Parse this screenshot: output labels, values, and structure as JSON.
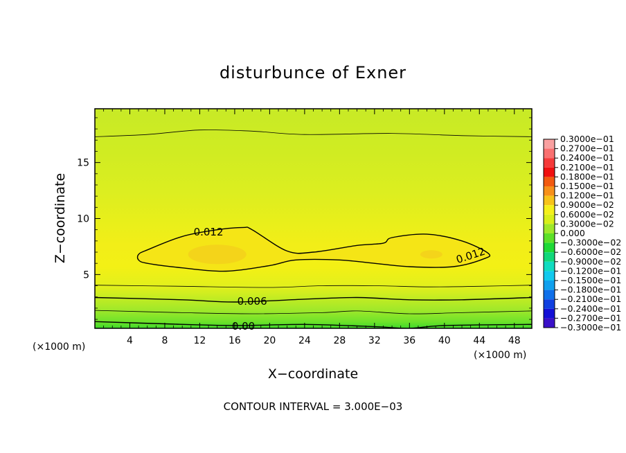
{
  "chart_data": {
    "type": "heatmap",
    "title": "disturbunce of Exner",
    "xlabel": "X−coordinate",
    "ylabel": "Z−coordinate",
    "x_unit_left": "(×1000 m)",
    "x_unit_right": "(×1000 m)",
    "xlim": [
      0,
      50
    ],
    "ylim": [
      0.2,
      19.8
    ],
    "xticks": [
      4,
      8,
      12,
      16,
      20,
      24,
      28,
      32,
      36,
      40,
      44,
      48
    ],
    "xtick_labels": [
      "4",
      "8",
      "12",
      "16",
      "20",
      "24",
      "28",
      "32",
      "36",
      "40",
      "44",
      "48"
    ],
    "yticks": [
      5,
      10,
      15
    ],
    "ytick_labels": [
      "5",
      "10",
      "15"
    ],
    "contour_interval_text": "CONTOUR INTERVAL = 3.000E−03",
    "contour_labels": [
      {
        "text": "0.012",
        "x": 13,
        "y": 8.8
      },
      {
        "text": "0.012",
        "x": 43,
        "y": 6.7
      },
      {
        "text": "0.006",
        "x": 18,
        "y": 2.6
      },
      {
        "text": "0.00",
        "x": 17,
        "y": 0.4
      }
    ],
    "contours": [
      {
        "level": 0.0,
        "points": [
          [
            0,
            0.8
          ],
          [
            8,
            0.6
          ],
          [
            16,
            0.45
          ],
          [
            24,
            0.55
          ],
          [
            32,
            0.35
          ],
          [
            36,
            0.2
          ],
          [
            40,
            0.45
          ],
          [
            50,
            0.55
          ]
        ]
      },
      {
        "level": 0.003,
        "points": [
          [
            0,
            1.8
          ],
          [
            10,
            1.6
          ],
          [
            18,
            1.5
          ],
          [
            26,
            1.6
          ],
          [
            30,
            1.75
          ],
          [
            36,
            1.5
          ],
          [
            42,
            1.6
          ],
          [
            50,
            1.75
          ]
        ]
      },
      {
        "level": 0.006,
        "points": [
          [
            0,
            2.95
          ],
          [
            10,
            2.75
          ],
          [
            16,
            2.55
          ],
          [
            24,
            2.8
          ],
          [
            30,
            2.95
          ],
          [
            36,
            2.75
          ],
          [
            42,
            2.75
          ],
          [
            50,
            2.95
          ]
        ]
      },
      {
        "level": 0.009,
        "points": [
          [
            0,
            4.05
          ],
          [
            10,
            3.95
          ],
          [
            20,
            3.85
          ],
          [
            26,
            4.0
          ],
          [
            32,
            4.0
          ],
          [
            38,
            3.9
          ],
          [
            44,
            3.95
          ],
          [
            50,
            4.05
          ]
        ]
      },
      {
        "level": 0.012,
        "points": [
          [
            5,
            6.3
          ],
          [
            6,
            6.0
          ],
          [
            10,
            5.6
          ],
          [
            15,
            5.3
          ],
          [
            20,
            5.8
          ],
          [
            23,
            6.3
          ],
          [
            28,
            6.3
          ],
          [
            32,
            6.0
          ],
          [
            36,
            5.7
          ],
          [
            41,
            5.7
          ],
          [
            44.5,
            6.4
          ],
          [
            45,
            6.9
          ],
          [
            42,
            8.0
          ],
          [
            38,
            8.6
          ],
          [
            34,
            8.3
          ],
          [
            33,
            7.8
          ],
          [
            30,
            7.6
          ],
          [
            25,
            7.0
          ],
          [
            22,
            7.1
          ],
          [
            18,
            9.0
          ],
          [
            17,
            9.2
          ],
          [
            14,
            9.0
          ],
          [
            10,
            8.4
          ],
          [
            6,
            7.2
          ],
          [
            5,
            6.8
          ]
        ],
        "closed": true
      },
      {
        "level": 0.009,
        "points": [
          [
            0,
            17.3
          ],
          [
            6,
            17.5
          ],
          [
            12,
            17.9
          ],
          [
            18,
            17.8
          ],
          [
            24,
            17.5
          ],
          [
            34,
            17.6
          ],
          [
            42,
            17.4
          ],
          [
            50,
            17.3
          ]
        ]
      }
    ],
    "colorbar": {
      "labels": [
        "0.3000e−01",
        "0.2700e−01",
        "0.2400e−01",
        "0.2100e−01",
        "0.1800e−01",
        "0.1500e−01",
        "0.1200e−01",
        "0.9000e−02",
        "0.6000e−02",
        "0.3000e−02",
        "0.000",
        "−0.3000e−02",
        "−0.6000e−02",
        "−0.9000e−02",
        "−0.1200e−01",
        "−0.1500e−01",
        "−0.1800e−01",
        "−0.2100e−01",
        "−0.2400e−01",
        "−0.2700e−01",
        "−0.3000e−01"
      ],
      "colors": [
        "#f9a0a0",
        "#f97070",
        "#f53a3a",
        "#f01010",
        "#f25a10",
        "#f7901a",
        "#f7c31a",
        "#f5f01a",
        "#d8ef1a",
        "#9ee82a",
        "#5ce028",
        "#1ed936",
        "#10d87a",
        "#10dcc0",
        "#12c9ee",
        "#10a0ee",
        "#1070ea",
        "#1040e0",
        "#1410d6",
        "#3a10c8",
        "#6a18b8"
      ]
    },
    "field_colors": {
      "level_0.000": "#5ce028",
      "level_0.003": "#9ee82a",
      "level_0.006": "#d8ef1a",
      "level_0.009": "#f5f01a",
      "level_0.012": "#f7c31a"
    }
  }
}
